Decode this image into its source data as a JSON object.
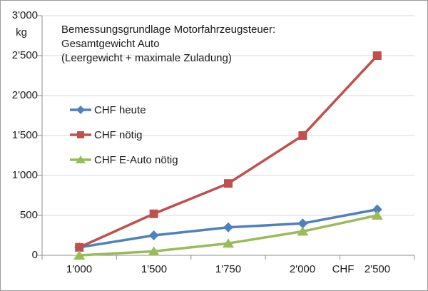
{
  "chart_data": {
    "type": "line",
    "title_lines": [
      "Bemessungsgrundlage Motorfahrzeugsteuer:",
      "Gesamtgewicht Auto",
      "(Leergewicht + maximale Zuladung)"
    ],
    "categories": [
      "1'000",
      "1'500",
      "1'750",
      "2'000",
      "2'500"
    ],
    "x_unit_label": "CHF",
    "y_unit_label": "kg",
    "ylim": [
      0,
      3000
    ],
    "ytick_step": 500,
    "ytick_labels": [
      "0",
      "500",
      "1'000",
      "1'500",
      "2'000",
      "2'500",
      "3'000"
    ],
    "grid": true,
    "legend_position": "left-middle",
    "series": [
      {
        "name": "CHF heute",
        "marker": "diamond",
        "color": "#4F81BD",
        "values": [
          100,
          250,
          350,
          400,
          575
        ]
      },
      {
        "name": "CHF nötig",
        "marker": "square",
        "color": "#C0504D",
        "values": [
          100,
          520,
          900,
          1500,
          2500
        ]
      },
      {
        "name": "CHF E-Auto nötig",
        "marker": "triangle",
        "color": "#9BBB59",
        "values": [
          0,
          50,
          150,
          300,
          500
        ]
      }
    ],
    "colors": {
      "grid": "#D9D9D9",
      "axis": "#8C8C8C",
      "text": "#1a1a1a",
      "background": "#FFFFFF"
    }
  }
}
